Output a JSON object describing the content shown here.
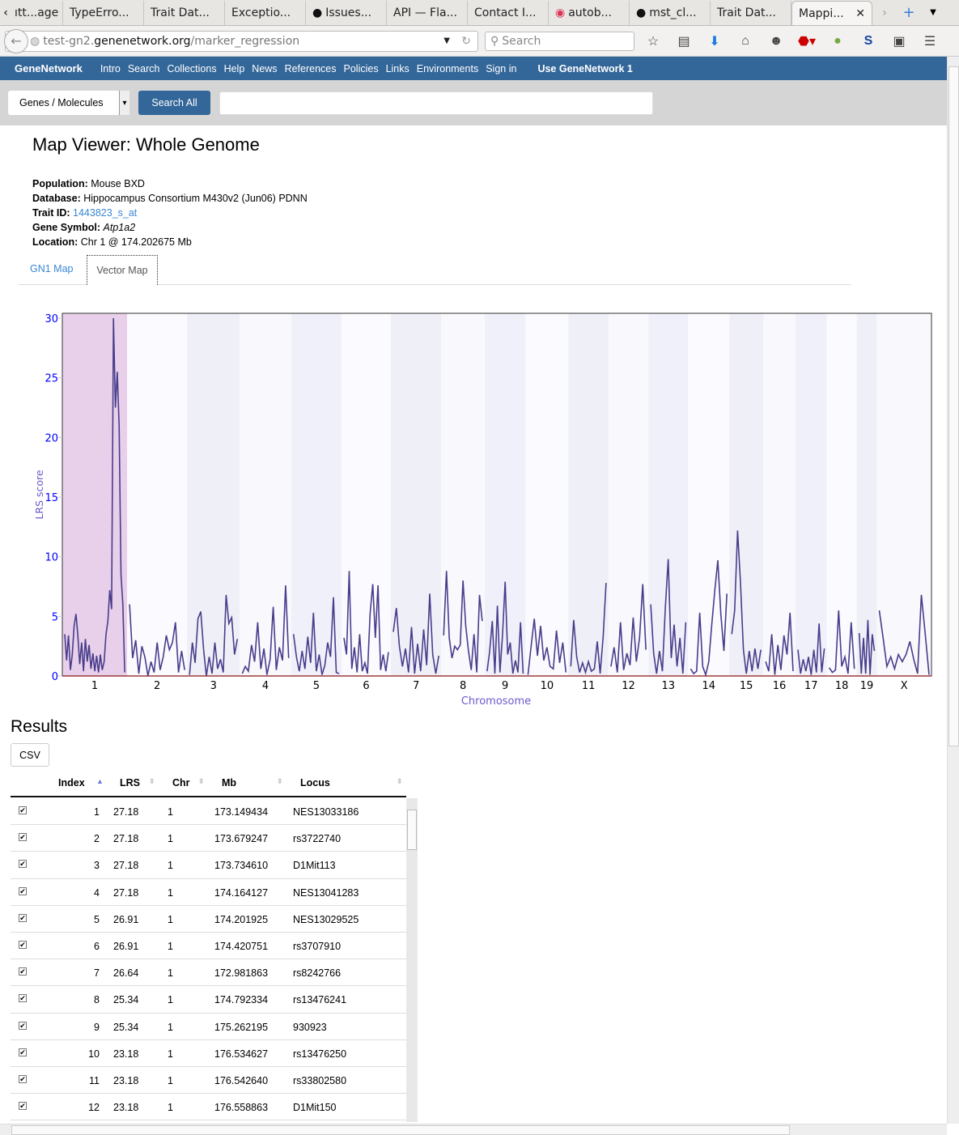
{
  "browser": {
    "tabs": [
      {
        "label": "ıtt...age"
      },
      {
        "label": "TypeErro..."
      },
      {
        "label": "Trait Dat..."
      },
      {
        "label": "Exceptio..."
      },
      {
        "label": "Issues...",
        "icon": "github-icon"
      },
      {
        "label": "API — Fla..."
      },
      {
        "label": "Contact I..."
      },
      {
        "label": "autob...",
        "icon": "duckduckgo-icon"
      },
      {
        "label": "mst_cl...",
        "icon": "github-icon"
      },
      {
        "label": "Trait Dat..."
      }
    ],
    "active_tab": "Mappi...",
    "url_prefix": "test-gn2.",
    "url_domain": "genenetwork.org",
    "url_path": "/marker_regression",
    "search_placeholder": "Search"
  },
  "nav": {
    "brand": "GeneNetwork",
    "items": [
      "Intro",
      "Search",
      "Collections",
      "Help",
      "News",
      "References",
      "Policies",
      "Links",
      "Environments",
      "Sign in"
    ],
    "gn1": "Use GeneNetwork 1"
  },
  "search": {
    "select_value": "Genes / Molecules",
    "button": "Search All",
    "input_value": ""
  },
  "page": {
    "title": "Map Viewer: Whole Genome",
    "population_label": "Population:",
    "population": "Mouse BXD",
    "database_label": "Database:",
    "database": "Hippocampus Consortium M430v2 (Jun06) PDNN",
    "trait_label": "Trait ID:",
    "trait": "1443823_s_at",
    "gene_label": "Gene Symbol:",
    "gene": "Atp1a2",
    "location_label": "Location:",
    "location": "Chr 1 @ 174.202675 Mb",
    "tabs": [
      "GN1 Map",
      "Vector Map"
    ]
  },
  "chart_data": {
    "type": "line",
    "xlabel": "Chromosome",
    "ylabel": "LRS score",
    "ylim": [
      0,
      30
    ],
    "yticks": [
      0,
      5,
      10,
      15,
      20,
      25,
      30
    ],
    "line_color": "#483d8b",
    "highlight_color": "#e8d0ea",
    "chromosomes": [
      {
        "name": "1",
        "length_mb": 197,
        "lrs": [
          3.5,
          1.3,
          3.4,
          0.5,
          1.8,
          4.2,
          5.2,
          3.4,
          1,
          2.8,
          0.4,
          3.1,
          1.2,
          2.6,
          0.6,
          1.9,
          0.4,
          1.7,
          0.3,
          1.8,
          0.5,
          1.2,
          3.5,
          4.6,
          7.2,
          5.6,
          30,
          22.5,
          25.5,
          21,
          8.5,
          6,
          0.3
        ]
      },
      {
        "name": "2",
        "length_mb": 182,
        "lrs": [
          6,
          1.5,
          3,
          0.2,
          2.5,
          1.6,
          0,
          1.2,
          0.3,
          2.8,
          0.5,
          1.6,
          3.4,
          2.2,
          2.8,
          4.5,
          0.3,
          2.1,
          0.5
        ]
      },
      {
        "name": "3",
        "length_mb": 160,
        "lrs": [
          0.1,
          2.8,
          1.1,
          4.8,
          5.4,
          2.2,
          0,
          1.6,
          0.2,
          2.8,
          0.6,
          1.4,
          0.3,
          6.8,
          4.4,
          4.9,
          1.8,
          3.1
        ]
      },
      {
        "name": "4",
        "length_mb": 156,
        "lrs": [
          0.2,
          0.8,
          0.4,
          2.6,
          1.2,
          4.5,
          0.6,
          2.3,
          0.1,
          1.4,
          5.8,
          0.5,
          2.4,
          1.3,
          7.6,
          1.5
        ]
      },
      {
        "name": "5",
        "length_mb": 153,
        "lrs": [
          3.5,
          1.6,
          0.4,
          2.1,
          0.6,
          3.3,
          1.1,
          5.3,
          0.4,
          1.8,
          0.1,
          0.9,
          2.8,
          1.6,
          6.6,
          0.3,
          0.2
        ]
      },
      {
        "name": "6",
        "length_mb": 150,
        "lrs": [
          3.2,
          1.8,
          8.8,
          0.6,
          2.4,
          0.3,
          3.5,
          0.4,
          1.1,
          0.2,
          5.2,
          7.7,
          3.2,
          7.6,
          0.5,
          1.8,
          0.4,
          2
        ]
      },
      {
        "name": "7",
        "length_mb": 153,
        "lrs": [
          3.7,
          5.7,
          2.5,
          0.8,
          2.3,
          0.3,
          4.1,
          0.2,
          2.7,
          0.4,
          3.9,
          0.9,
          6.9,
          1.8,
          0.2,
          1.7
        ]
      },
      {
        "name": "8",
        "length_mb": 132,
        "lrs": [
          3.4,
          8.8,
          3.2,
          1.5,
          2.5,
          2.2,
          2.6,
          8,
          4.2,
          2.1,
          0.5,
          3.5,
          0.3,
          6.8,
          4.6
        ]
      },
      {
        "name": "9",
        "length_mb": 124,
        "lrs": [
          0.4,
          2.1,
          4.6,
          0.2,
          5.9,
          0.3,
          3.5,
          7.9,
          1.8,
          2.8,
          0.2,
          1.3,
          0.3,
          4.5,
          0.2
        ]
      },
      {
        "name": "10",
        "length_mb": 130,
        "lrs": [
          0.1,
          2.5,
          4.8,
          1.7,
          4.2,
          1.3,
          2.4,
          0.8,
          0.6,
          3.8,
          1.1,
          2.8,
          0.3
        ]
      },
      {
        "name": "11",
        "length_mb": 122,
        "lrs": [
          0.8,
          4.7,
          1.6,
          0.3,
          1.1,
          0.3,
          1.2,
          0.4,
          0.6,
          2.9,
          0.2,
          3.3,
          7.8
        ]
      },
      {
        "name": "12",
        "length_mb": 121,
        "lrs": [
          0.8,
          2.4,
          0.3,
          4.5,
          0.5,
          1.9,
          0.9,
          4.9,
          1.2,
          3.2,
          7.7,
          2.2
        ]
      },
      {
        "name": "13",
        "length_mb": 121,
        "lrs": [
          6,
          1.9,
          0.2,
          2.1,
          0.4,
          5.7,
          9.8,
          1.5,
          4.3,
          0.8,
          3.2,
          0.2,
          4.5
        ]
      },
      {
        "name": "14",
        "length_mb": 125,
        "lrs": [
          0.6,
          0.2,
          0.4,
          5.3,
          0.8,
          0.1,
          1.2,
          4.3,
          7.2,
          9.7,
          5.2,
          2.1,
          6.9
        ]
      },
      {
        "name": "15",
        "length_mb": 103,
        "lrs": [
          3.5,
          5.5,
          12.2,
          7.8,
          2.2,
          0.2,
          2.1,
          0.4,
          2.3,
          0.6,
          2.2
        ]
      },
      {
        "name": "16",
        "length_mb": 98,
        "lrs": [
          1.2,
          0.4,
          3.5,
          0.1,
          2.6,
          0.5,
          3.4,
          1.8,
          5.3,
          0.4
        ]
      },
      {
        "name": "17",
        "length_mb": 95,
        "lrs": [
          2.2,
          0.2,
          1.4,
          0.4,
          1.6,
          0.1,
          2.2,
          0.3,
          4.4,
          0.3,
          2.3
        ]
      },
      {
        "name": "18",
        "length_mb": 91,
        "lrs": [
          0.7,
          0.3,
          0.5,
          5.5,
          0.8,
          1.6,
          0.2,
          4.5,
          0.6
        ]
      },
      {
        "name": "19",
        "length_mb": 61,
        "lrs": [
          3.6,
          0.2,
          3.2,
          0.2,
          4.7,
          0.1,
          3.5,
          2.1
        ]
      },
      {
        "name": "X",
        "length_mb": 166,
        "lrs": [
          5.5,
          3.2,
          0.8,
          1.6,
          0.6,
          1.8,
          1.2,
          1.8,
          2.9,
          1.4,
          0.2,
          6.8,
          3.5,
          0.1
        ]
      }
    ]
  },
  "results": {
    "title": "Results",
    "csv": "CSV",
    "columns": [
      "Index",
      "LRS",
      "Chr",
      "Mb",
      "Locus"
    ],
    "rows": [
      [
        "1",
        "27.18",
        "1",
        "173.149434",
        "NES13033186"
      ],
      [
        "2",
        "27.18",
        "1",
        "173.679247",
        "rs3722740"
      ],
      [
        "3",
        "27.18",
        "1",
        "173.734610",
        "D1Mit113"
      ],
      [
        "4",
        "27.18",
        "1",
        "174.164127",
        "NES13041283"
      ],
      [
        "5",
        "26.91",
        "1",
        "174.201925",
        "NES13029525"
      ],
      [
        "6",
        "26.91",
        "1",
        "174.420751",
        "rs3707910"
      ],
      [
        "7",
        "26.64",
        "1",
        "172.981863",
        "rs8242766"
      ],
      [
        "8",
        "25.34",
        "1",
        "174.792334",
        "rs13476241"
      ],
      [
        "9",
        "25.34",
        "1",
        "175.262195",
        "930923"
      ],
      [
        "10",
        "23.18",
        "1",
        "176.534627",
        "rs13476250"
      ],
      [
        "11",
        "23.18",
        "1",
        "176.542640",
        "rs33802580"
      ],
      [
        "12",
        "23.18",
        "1",
        "176.558863",
        "D1Mit150"
      ]
    ]
  }
}
